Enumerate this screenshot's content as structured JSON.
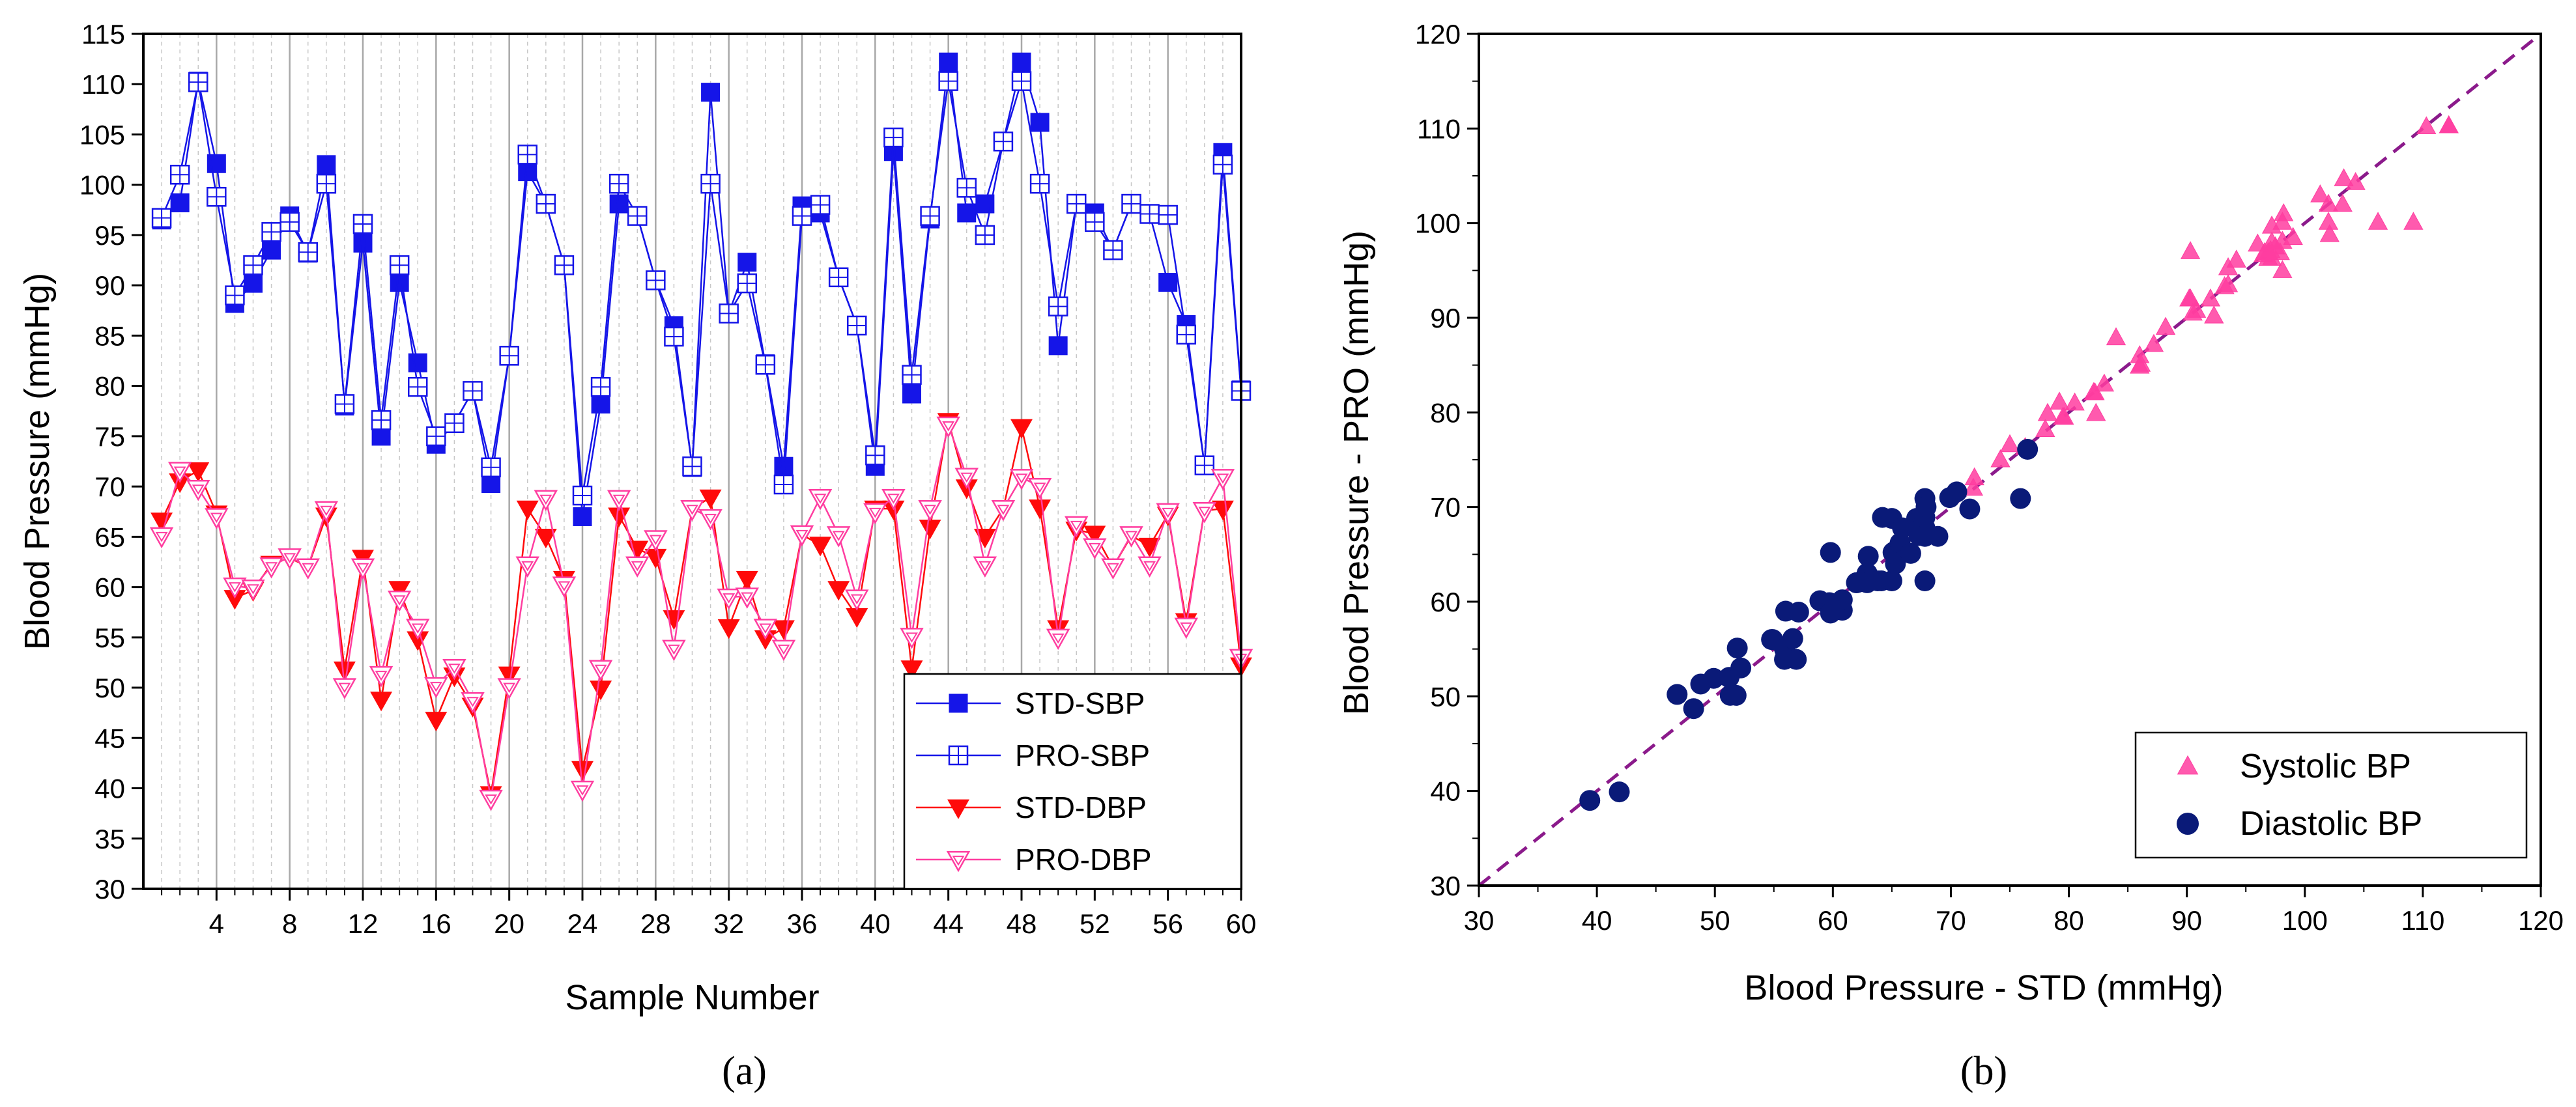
{
  "chart_data": [
    {
      "type": "line",
      "caption": "(a)",
      "xlabel": "Sample Number",
      "ylabel": "Blood Pressure (mmHg)",
      "xlim": [
        0,
        60
      ],
      "ylim": [
        30,
        115
      ],
      "x_ticks": [
        4,
        8,
        12,
        16,
        20,
        24,
        28,
        32,
        36,
        40,
        44,
        48,
        52,
        56,
        60
      ],
      "y_ticks": [
        30,
        35,
        40,
        45,
        50,
        55,
        60,
        65,
        70,
        75,
        80,
        85,
        90,
        95,
        100,
        105,
        110,
        115
      ],
      "legend_position": "bottom-right",
      "x": [
        1,
        2,
        3,
        4,
        5,
        6,
        7,
        8,
        9,
        10,
        11,
        12,
        13,
        14,
        15,
        16,
        17,
        18,
        19,
        20,
        21,
        22,
        23,
        24,
        25,
        26,
        27,
        28,
        29,
        30,
        31,
        32,
        33,
        34,
        35,
        36,
        37,
        38,
        39,
        40,
        41,
        42,
        43,
        44,
        45,
        46,
        47,
        48,
        49,
        50,
        51,
        52,
        53,
        54,
        55,
        56,
        57,
        58,
        59,
        60
      ],
      "series": [
        {
          "name": "STD-SBP",
          "color": "#1515e8",
          "marker": "square-filled",
          "values": [
            96.5,
            98.2,
            110.3,
            102.1,
            88.2,
            90.2,
            93.5,
            96.9,
            93.2,
            102,
            78,
            94.2,
            75,
            90.3,
            82.3,
            74.2,
            76.3,
            79.5,
            70.3,
            83,
            101.3,
            98.1,
            92,
            67,
            78.2,
            98.1,
            96.9,
            90.5,
            86,
            71.9,
            109.2,
            87.2,
            92.3,
            82.2,
            72,
            97.9,
            97.2,
            90.8,
            86,
            72,
            103.3,
            79.2,
            96.6,
            112.2,
            97.2,
            98.1,
            104.3,
            112.2,
            106.2,
            84,
            98.1,
            97.2,
            93.5,
            98.1,
            97.1,
            90.3,
            86.1,
            72.1,
            103.2,
            79.6
          ]
        },
        {
          "name": "PRO-SBP",
          "color": "#1515e8",
          "marker": "square-grid",
          "values": [
            96.7,
            101,
            110.2,
            98.8,
            89,
            92,
            95.3,
            96.3,
            93.3,
            100.1,
            78.2,
            96.1,
            76.6,
            92,
            79.9,
            75,
            76.3,
            79.5,
            71.9,
            83,
            103,
            98.1,
            92,
            69.1,
            79.9,
            100.1,
            96.9,
            90.5,
            84.9,
            72,
            100.1,
            87.2,
            90.2,
            82.1,
            70.2,
            96.9,
            98,
            90.8,
            86,
            73.1,
            104.7,
            81.1,
            96.9,
            110.3,
            99.7,
            95,
            104.3,
            110.3,
            100.1,
            87.9,
            98.1,
            96.3,
            93.5,
            98.1,
            97.1,
            97,
            85.1,
            72.1,
            102,
            79.5
          ]
        },
        {
          "name": "STD-DBP",
          "color": "#ff0a0a",
          "marker": "triangle-down-filled",
          "values": [
            66.6,
            70.5,
            71.6,
            67.3,
            58.9,
            59.7,
            62.3,
            62.9,
            62,
            67.1,
            51.8,
            62.9,
            48.8,
            59.8,
            54.8,
            46.8,
            51.2,
            48.2,
            39.4,
            51.3,
            67.8,
            65,
            60.8,
            41.9,
            49.9,
            67.1,
            63.8,
            63,
            56.9,
            67.8,
            68.9,
            56,
            60.8,
            54.9,
            55.9,
            65.2,
            64.2,
            59.8,
            57.1,
            67.8,
            67.8,
            51.9,
            65.9,
            76.5,
            69.9,
            65,
            67.8,
            75.9,
            67.9,
            55.9,
            65.7,
            65.3,
            62,
            65.1,
            64.1,
            67.2,
            56.6,
            67.6,
            67.8,
            52.2
          ]
        },
        {
          "name": "PRO-DBP",
          "color": "#ff3da0",
          "marker": "triangle-down-open",
          "values": [
            65.1,
            71.6,
            69.8,
            67,
            60.1,
            59.9,
            62.1,
            63,
            62,
            67.7,
            50.1,
            62,
            51.3,
            58.8,
            56,
            50.2,
            52,
            48.7,
            39,
            50.1,
            62.2,
            68.8,
            60.2,
            39.9,
            51.9,
            68.8,
            62.2,
            64.8,
            53.9,
            67.8,
            66.9,
            59,
            59.1,
            56,
            53.9,
            65.3,
            68.9,
            65.2,
            58.9,
            67.5,
            68.9,
            55.1,
            67.8,
            76.1,
            71,
            62.2,
            67.8,
            70.9,
            70,
            55,
            66.2,
            64,
            62,
            65.2,
            62.2,
            67.5,
            56.1,
            67.6,
            70.9,
            53
          ]
        }
      ]
    },
    {
      "type": "scatter",
      "caption": "(b)",
      "xlabel": "Blood Pressure - STD (mmHg)",
      "ylabel": "Blood Pressure - PRO (mmHg)",
      "xlim": [
        30,
        120
      ],
      "ylim": [
        30,
        120
      ],
      "x_ticks": [
        30,
        40,
        50,
        60,
        70,
        80,
        90,
        100,
        110,
        120
      ],
      "y_ticks": [
        30,
        40,
        50,
        60,
        70,
        80,
        90,
        100,
        110,
        120
      ],
      "legend_position": "bottom-right",
      "reference_line": {
        "style": "dashed",
        "color": "#8b1a8b",
        "from": [
          30,
          30
        ],
        "to": [
          120,
          120
        ]
      },
      "series": [
        {
          "name": "Systolic BP",
          "color": "#ff3da0",
          "marker": "triangle-up-filled",
          "points": [
            [
              71.9,
              72
            ],
            [
              72,
              73.1
            ],
            [
              74.2,
              75
            ],
            [
              75,
              76.6
            ],
            [
              76.3,
              76.3
            ],
            [
              78,
              78.2
            ],
            [
              78.2,
              79.9
            ],
            [
              79.2,
              81.1
            ],
            [
              79.5,
              79.5
            ],
            [
              79.6,
              79.5
            ],
            [
              80.5,
              81
            ],
            [
              82.1,
              82.1
            ],
            [
              82.2,
              82.1
            ],
            [
              82.3,
              79.9
            ],
            [
              83,
              83
            ],
            [
              84,
              87.9
            ],
            [
              86,
              84.9
            ],
            [
              86,
              86
            ],
            [
              86.1,
              85.1
            ],
            [
              87.2,
              87.2
            ],
            [
              88.2,
              89
            ],
            [
              90.2,
              92
            ],
            [
              90.3,
              92
            ],
            [
              90.5,
              90.5
            ],
            [
              90.8,
              90.8
            ],
            [
              92,
              92
            ],
            [
              92.3,
              90.2
            ],
            [
              93.2,
              93.3
            ],
            [
              93.5,
              95.3
            ],
            [
              93.5,
              93.5
            ],
            [
              94.2,
              96.1
            ],
            [
              96.5,
              96.7
            ],
            [
              96.6,
              96.9
            ],
            [
              96.9,
              96.9
            ],
            [
              96.9,
              96.3
            ],
            [
              97.1,
              97.1
            ],
            [
              97.2,
              98
            ],
            [
              97.2,
              96.3
            ],
            [
              97.2,
              99.7
            ],
            [
              97.9,
              96.9
            ],
            [
              98.1,
              98.1
            ],
            [
              98.1,
              100.1
            ],
            [
              98.1,
              95
            ],
            [
              98.2,
              101
            ],
            [
              90.3,
              97
            ],
            [
              101.3,
              103
            ],
            [
              102,
              102
            ],
            [
              102.1,
              98.8
            ],
            [
              102,
              100.1
            ],
            [
              103.2,
              102
            ],
            [
              103.3,
              104.7
            ],
            [
              104.3,
              104.3
            ],
            [
              106.2,
              100.1
            ],
            [
              109.2,
              100.1
            ],
            [
              110.3,
              110.2
            ],
            [
              112.2,
              110.3
            ],
            [
              112.2,
              110.3
            ],
            [
              97.5,
              97.5
            ],
            [
              96,
              97.8
            ],
            [
              99,
              98.5
            ]
          ]
        },
        {
          "name": "Diastolic BP",
          "color": "#0a1a78",
          "marker": "circle-filled",
          "points": [
            [
              39.4,
              39
            ],
            [
              41.9,
              39.9
            ],
            [
              46.8,
              50.2
            ],
            [
              48.2,
              48.7
            ],
            [
              48.8,
              51.3
            ],
            [
              49.9,
              51.9
            ],
            [
              51.2,
              52
            ],
            [
              51.3,
              50.1
            ],
            [
              51.8,
              50.1
            ],
            [
              51.9,
              55.1
            ],
            [
              52.2,
              53
            ],
            [
              54.8,
              56
            ],
            [
              54.9,
              56
            ],
            [
              55.9,
              53.9
            ],
            [
              55.9,
              55
            ],
            [
              56,
              59
            ],
            [
              56.6,
              56.1
            ],
            [
              56.9,
              53.9
            ],
            [
              57.1,
              58.9
            ],
            [
              58.9,
              60.1
            ],
            [
              59.7,
              59.9
            ],
            [
              59.8,
              58.8
            ],
            [
              59.8,
              65.2
            ],
            [
              60.8,
              59.1
            ],
            [
              60.8,
              60.2
            ],
            [
              62,
              62
            ],
            [
              62,
              62
            ],
            [
              62.3,
              62.1
            ],
            [
              62.9,
              63
            ],
            [
              62.9,
              62
            ],
            [
              63,
              64.8
            ],
            [
              63.8,
              62.2
            ],
            [
              64.1,
              62.2
            ],
            [
              64.2,
              68.9
            ],
            [
              65,
              68.8
            ],
            [
              65,
              62.2
            ],
            [
              65.1,
              65.2
            ],
            [
              65.2,
              65.3
            ],
            [
              65.3,
              64
            ],
            [
              65.7,
              66.2
            ],
            [
              65.9,
              67.8
            ],
            [
              66.6,
              65.1
            ],
            [
              67.1,
              68.8
            ],
            [
              67.1,
              67.7
            ],
            [
              67.2,
              67.5
            ],
            [
              67.3,
              67
            ],
            [
              67.6,
              67.6
            ],
            [
              67.8,
              67.8
            ],
            [
              67.8,
              62.2
            ],
            [
              67.8,
              66.9
            ],
            [
              67.8,
              67.5
            ],
            [
              67.8,
              68.9
            ],
            [
              67.8,
              70.9
            ],
            [
              67.9,
              70
            ],
            [
              68.9,
              66.9
            ],
            [
              69.9,
              71
            ],
            [
              70.5,
              71.6
            ],
            [
              71.6,
              69.8
            ],
            [
              75.9,
              70.9
            ],
            [
              76.5,
              76.1
            ]
          ]
        }
      ]
    }
  ]
}
